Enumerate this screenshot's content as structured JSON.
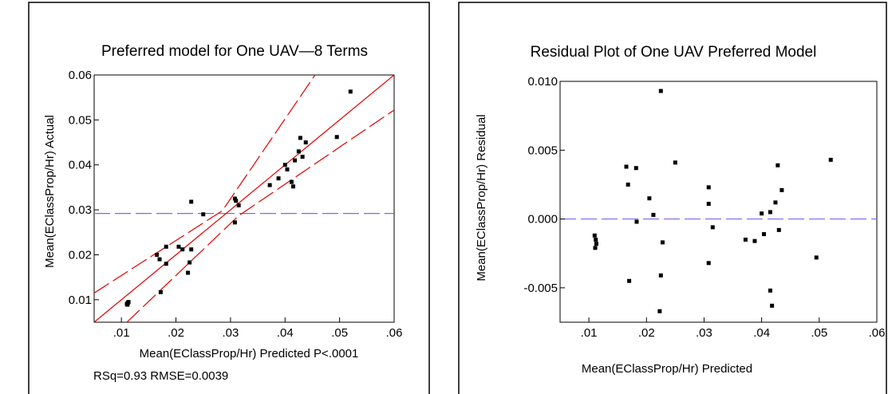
{
  "chart_data": [
    {
      "type": "scatter",
      "title": "Preferred model for One UAV—8 Terms",
      "xlabel": "Mean(EClassProp/Hr) Predicted P<.0001",
      "ylabel": "Mean(EClassProp/Hr) Actual",
      "footer": "RSq=0.93 RMSE=0.0039",
      "xlim": [
        0.005,
        0.06
      ],
      "ylim": [
        0.005,
        0.06
      ],
      "x_ticks": [
        ".01",
        ".02",
        ".03",
        ".04",
        ".05",
        ".06"
      ],
      "y_ticks": [
        "0.01",
        "0.02",
        "0.03",
        "0.04",
        "0.05",
        "0.06"
      ],
      "mean_line_y": 0.0292,
      "fit_line": [
        [
          0.005,
          0.005
        ],
        [
          0.06,
          0.06
        ]
      ],
      "confidence_upper": [
        [
          0.005,
          0.0115
        ],
        [
          0.0285,
          0.0298
        ],
        [
          0.0455,
          0.06
        ]
      ],
      "confidence_lower": [
        [
          0.011,
          0.005
        ],
        [
          0.0315,
          0.0287
        ],
        [
          0.06,
          0.0522
        ]
      ],
      "points": [
        [
          0.011,
          0.0091
        ],
        [
          0.0112,
          0.0093
        ],
        [
          0.0113,
          0.0095
        ],
        [
          0.0111,
          0.0089
        ],
        [
          0.0165,
          0.02
        ],
        [
          0.017,
          0.019
        ],
        [
          0.0172,
          0.0117
        ],
        [
          0.0182,
          0.018
        ],
        [
          0.0182,
          0.0218
        ],
        [
          0.0205,
          0.0218
        ],
        [
          0.0212,
          0.0212
        ],
        [
          0.0222,
          0.016
        ],
        [
          0.0225,
          0.0183
        ],
        [
          0.0228,
          0.0212
        ],
        [
          0.0228,
          0.0318
        ],
        [
          0.025,
          0.029
        ],
        [
          0.0308,
          0.0325
        ],
        [
          0.0308,
          0.0272
        ],
        [
          0.031,
          0.032
        ],
        [
          0.0315,
          0.031
        ],
        [
          0.0372,
          0.0355
        ],
        [
          0.0388,
          0.037
        ],
        [
          0.04,
          0.04
        ],
        [
          0.0404,
          0.039
        ],
        [
          0.0412,
          0.0362
        ],
        [
          0.0415,
          0.0352
        ],
        [
          0.0418,
          0.041
        ],
        [
          0.0425,
          0.043
        ],
        [
          0.0428,
          0.046
        ],
        [
          0.0432,
          0.0418
        ],
        [
          0.0438,
          0.045
        ],
        [
          0.0495,
          0.0462
        ],
        [
          0.052,
          0.0563
        ]
      ]
    },
    {
      "type": "scatter",
      "title": "Residual Plot of One UAV Preferred Model",
      "xlabel": "Mean(EClassProp/Hr) Predicted",
      "ylabel": "Mean(EClassProp/Hr) Residual",
      "xlim": [
        0.005,
        0.06
      ],
      "ylim": [
        -0.0075,
        0.01
      ],
      "x_ticks": [
        ".01",
        ".02",
        ".03",
        ".04",
        ".05",
        ".06"
      ],
      "y_ticks": [
        "-0.005",
        "0.000",
        "0.005",
        "0.010"
      ],
      "zero_line_y": 0.0,
      "points": [
        [
          0.011,
          -0.0012
        ],
        [
          0.0112,
          -0.0015
        ],
        [
          0.0113,
          -0.0018
        ],
        [
          0.0111,
          -0.0021
        ],
        [
          0.0165,
          0.0038
        ],
        [
          0.0168,
          0.0025
        ],
        [
          0.017,
          -0.0045
        ],
        [
          0.0182,
          0.0037
        ],
        [
          0.0183,
          -0.0002
        ],
        [
          0.0205,
          0.0015
        ],
        [
          0.0212,
          0.0003
        ],
        [
          0.0225,
          0.0093
        ],
        [
          0.0225,
          -0.0041
        ],
        [
          0.0228,
          -0.0017
        ],
        [
          0.0223,
          -0.0067
        ],
        [
          0.025,
          0.0041
        ],
        [
          0.0308,
          0.0023
        ],
        [
          0.0308,
          0.0011
        ],
        [
          0.0308,
          -0.0032
        ],
        [
          0.0315,
          -0.0006
        ],
        [
          0.0372,
          -0.0015
        ],
        [
          0.0388,
          -0.0016
        ],
        [
          0.04,
          0.0004
        ],
        [
          0.0404,
          -0.0011
        ],
        [
          0.0415,
          0.0005
        ],
        [
          0.0415,
          -0.0052
        ],
        [
          0.0418,
          -0.0063
        ],
        [
          0.0424,
          0.0012
        ],
        [
          0.0428,
          0.0039
        ],
        [
          0.043,
          -0.0008
        ],
        [
          0.0435,
          0.0021
        ],
        [
          0.0495,
          -0.0028
        ],
        [
          0.052,
          0.0043
        ]
      ]
    }
  ]
}
